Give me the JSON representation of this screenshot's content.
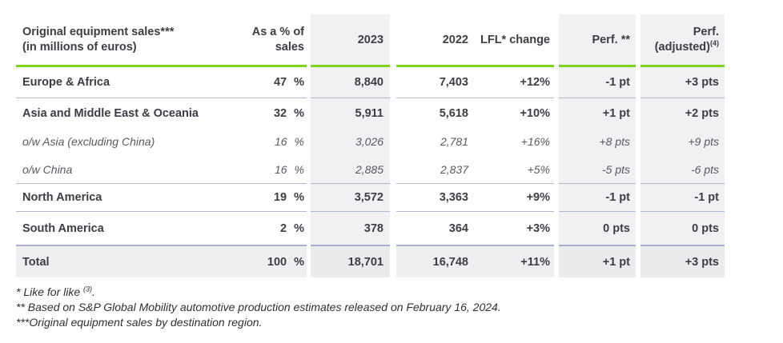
{
  "colors": {
    "accent_green": "#7ed31e",
    "row_separator": "#b0b9d2",
    "row_separator_strong": "#a7b0ce",
    "shaded_column_bg": "#f1f1f4",
    "total_row_bg": "#efeff2",
    "text_main": "#3b3e45",
    "text_sub_italic": "#565a61"
  },
  "header": {
    "title_line1": "Original equipment sales***",
    "title_line2": "(in millions of euros)",
    "pct_line1": "As a % of",
    "pct_line2": "sales",
    "y2023": "2023",
    "y2022": "2022",
    "lfl": "LFL* change",
    "perf": "Perf. **",
    "perf_adj_line1": "Perf.",
    "perf_adj_base": "(adjusted)",
    "perf_adj_sup": "(4)"
  },
  "rows": [
    {
      "label": "Europe & Africa",
      "pct": "47",
      "pct_unit": "%",
      "y2023": "8,840",
      "y2022": "7,403",
      "lfl": "+12%",
      "perf": "-1 pt",
      "perf_adj": "+3 pts"
    },
    {
      "label": "Asia and Middle East & Oceania",
      "pct": "32",
      "pct_unit": "%",
      "y2023": "5,911",
      "y2022": "5,618",
      "lfl": "+10%",
      "perf": "+1 pt",
      "perf_adj": "+2 pts"
    },
    {
      "label": "o/w Asia (excluding China)",
      "pct": "16",
      "pct_unit": "%",
      "y2023": "3,026",
      "y2022": "2,781",
      "lfl": "+16%",
      "perf": "+8 pts",
      "perf_adj": "+9 pts"
    },
    {
      "label": "o/w China",
      "pct": "16",
      "pct_unit": "%",
      "y2023": "2,885",
      "y2022": "2,837",
      "lfl": "+5%",
      "perf": "-5 pts",
      "perf_adj": "-6 pts"
    },
    {
      "label": "North America",
      "pct": "19",
      "pct_unit": "%",
      "y2023": "3,572",
      "y2022": "3,363",
      "lfl": "+9%",
      "perf": "-1 pt",
      "perf_adj": "-1 pt"
    },
    {
      "label": "South America",
      "pct": "2",
      "pct_unit": "%",
      "y2023": "378",
      "y2022": "364",
      "lfl": "+3%",
      "perf": "0 pts",
      "perf_adj": "0 pts"
    },
    {
      "label": "Total",
      "pct": "100",
      "pct_unit": "%",
      "y2023": "18,701",
      "y2022": "16,748",
      "lfl": "+11%",
      "perf": "+1 pt",
      "perf_adj": "+3 pts"
    }
  ],
  "footnotes": {
    "line1_pre": "* Like for like ",
    "line1_sup": "(3)",
    "line1_post": ".",
    "line2": "** Based on S&P Global Mobility automotive production estimates released on February 16, 2024.",
    "line3": "***Original equipment sales by destination region."
  }
}
